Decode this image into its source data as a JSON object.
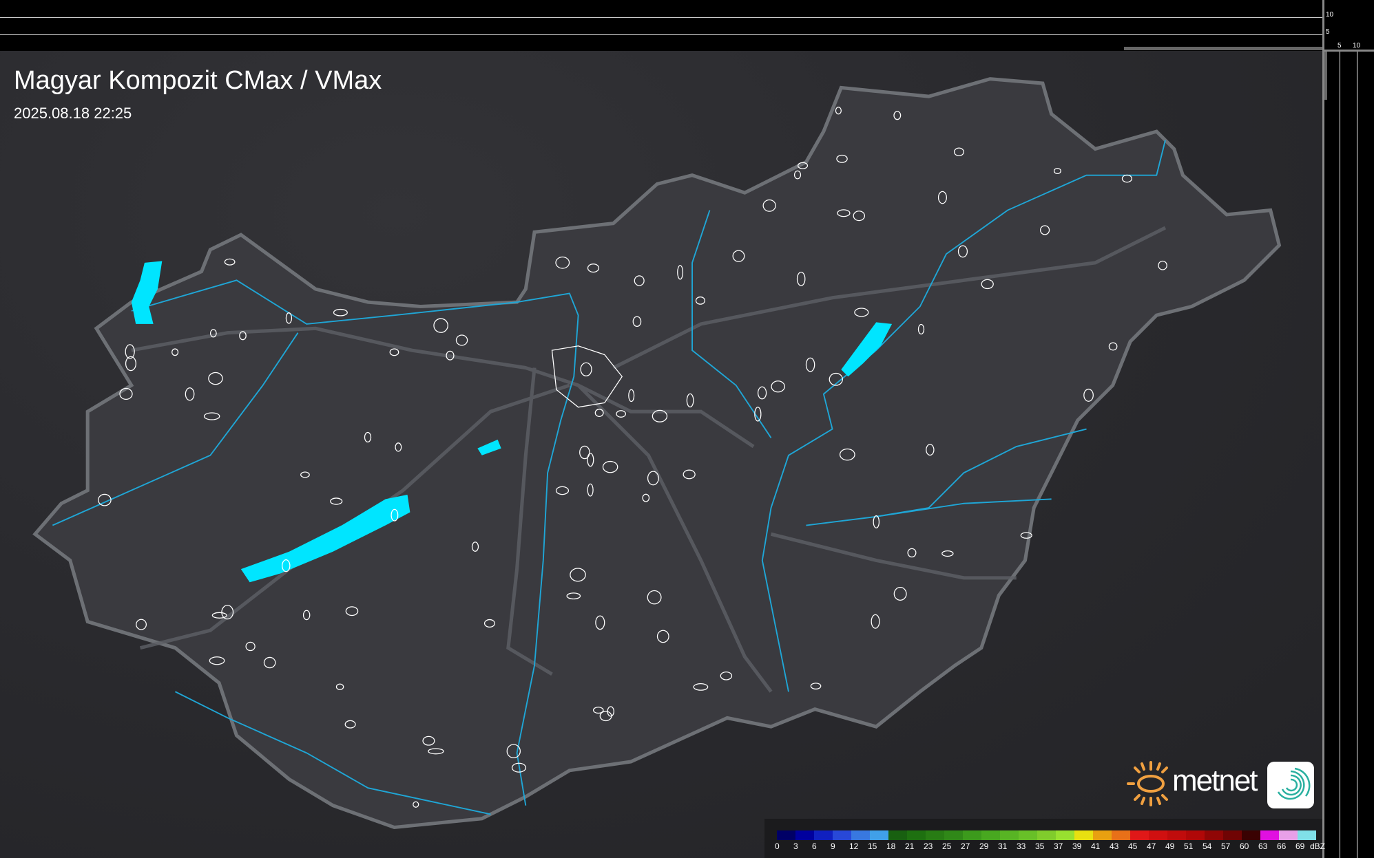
{
  "header": {
    "title": "Magyar Kompozit CMax / VMax",
    "datetime": "2025.08.18 22:25"
  },
  "scale": {
    "top_ticks": [
      "10",
      "5"
    ],
    "right_ticks": [
      "5",
      "10"
    ]
  },
  "brand": {
    "name": "metnet",
    "icon": "metnet-sun-logo",
    "app_icon": "swirl-icon"
  },
  "colors": {
    "border": "#6d7075",
    "land": "#3a3a3f",
    "water": "#00e5ff",
    "river": "#1fa6d6",
    "city": "#ffffff"
  },
  "legend": {
    "unit": "dBZ",
    "items": [
      {
        "label": "0",
        "color": "#000066"
      },
      {
        "label": "3",
        "color": "#00009e"
      },
      {
        "label": "6",
        "color": "#1020c0"
      },
      {
        "label": "9",
        "color": "#2848d8"
      },
      {
        "label": "12",
        "color": "#3878e0"
      },
      {
        "label": "15",
        "color": "#40a0e8"
      },
      {
        "label": "18",
        "color": "#186010"
      },
      {
        "label": "21",
        "color": "#1e7010"
      },
      {
        "label": "23",
        "color": "#287c14"
      },
      {
        "label": "25",
        "color": "#308818"
      },
      {
        "label": "27",
        "color": "#3c9a1c"
      },
      {
        "label": "29",
        "color": "#48a820"
      },
      {
        "label": "31",
        "color": "#58b424"
      },
      {
        "label": "33",
        "color": "#68c028"
      },
      {
        "label": "35",
        "color": "#80cc2c"
      },
      {
        "label": "37",
        "color": "#98e030"
      },
      {
        "label": "39",
        "color": "#e8e010"
      },
      {
        "label": "41",
        "color": "#e8a010"
      },
      {
        "label": "43",
        "color": "#e87018"
      },
      {
        "label": "45",
        "color": "#e01818"
      },
      {
        "label": "47",
        "color": "#d01010"
      },
      {
        "label": "49",
        "color": "#c00c0c"
      },
      {
        "label": "51",
        "color": "#b00808"
      },
      {
        "label": "54",
        "color": "#900606"
      },
      {
        "label": "57",
        "color": "#700404"
      },
      {
        "label": "60",
        "color": "#3a0202"
      },
      {
        "label": "63",
        "color": "#e010e0"
      },
      {
        "label": "66",
        "color": "#e8a0e8"
      },
      {
        "label": "69",
        "color": "#80e0e8"
      }
    ]
  }
}
